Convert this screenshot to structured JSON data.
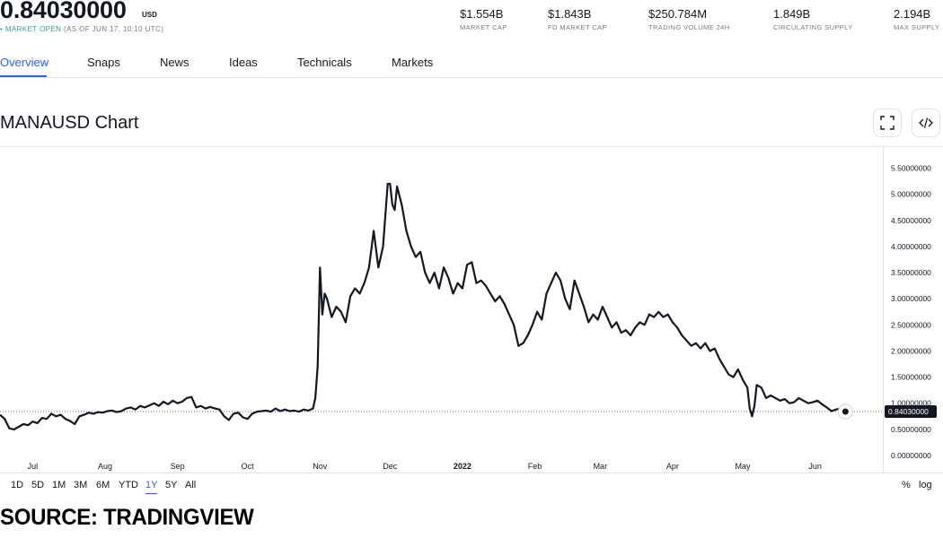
{
  "header": {
    "price": "0.84030000",
    "currency": "USD",
    "market_status": "MARKET OPEN",
    "as_of": "(AS OF JUN 17, 10:10 UTC)",
    "status_color": "#26a69a",
    "stats": [
      {
        "value": "$1.554B",
        "label": "MARKET CAP"
      },
      {
        "value": "$1.843B",
        "label": "FD MARKET CAP"
      },
      {
        "value": "$250.784M",
        "label": "TRADING VOLUME 24H"
      },
      {
        "value": "1.849B",
        "label": "CIRCULATING SUPPLY"
      },
      {
        "value": "2.194B",
        "label": "MAX SUPPLY"
      }
    ]
  },
  "tabs": [
    "Overview",
    "Snaps",
    "News",
    "Ideas",
    "Technicals",
    "Markets"
  ],
  "active_tab": "Overview",
  "accent_color": "#2962ff",
  "chart_title": "MANAUSD Chart",
  "icons": {
    "fullscreen": "fullscreen-icon",
    "embed": "embed-code-icon"
  },
  "range_buttons": [
    "1D",
    "5D",
    "1M",
    "3M",
    "6M",
    "YTD",
    "1Y",
    "5Y",
    "All"
  ],
  "active_range": "1Y",
  "scale_buttons": [
    "%",
    "log"
  ],
  "source": "SOURCE: TRADINGVIEW",
  "chart_data": {
    "type": "line",
    "symbol": "MANAUSD",
    "series_color": "#131722",
    "ylim": [
      0,
      5.75
    ],
    "y_ticks": [
      0,
      0.5,
      1.0,
      1.5,
      2.0,
      2.5,
      3.0,
      3.5,
      4.0,
      4.5,
      5.0,
      5.5
    ],
    "y_tick_labels": [
      "0.00000000",
      "0.50000000",
      "1.00000000",
      "1.50000000",
      "2.00000000",
      "2.50000000",
      "3.00000000",
      "3.50000000",
      "4.00000000",
      "4.50000000",
      "5.00000000",
      "5.50000000"
    ],
    "x_ticks": [
      {
        "label": "Jul",
        "day": 14
      },
      {
        "label": "Aug",
        "day": 45
      },
      {
        "label": "Sep",
        "day": 76
      },
      {
        "label": "Oct",
        "day": 106
      },
      {
        "label": "Nov",
        "day": 137
      },
      {
        "label": "Dec",
        "day": 167
      },
      {
        "label": "2022",
        "day": 198
      },
      {
        "label": "Feb",
        "day": 229
      },
      {
        "label": "Mar",
        "day": 257
      },
      {
        "label": "Apr",
        "day": 288
      },
      {
        "label": "May",
        "day": 318
      },
      {
        "label": "Jun",
        "day": 349
      }
    ],
    "x_range_days": [
      0,
      403
    ],
    "last_value": 0.8403,
    "last_value_label": "0.84030000",
    "points": [
      [
        0,
        0.78
      ],
      [
        2,
        0.7
      ],
      [
        4,
        0.52
      ],
      [
        6,
        0.5
      ],
      [
        8,
        0.55
      ],
      [
        10,
        0.6
      ],
      [
        12,
        0.58
      ],
      [
        14,
        0.65
      ],
      [
        16,
        0.62
      ],
      [
        18,
        0.72
      ],
      [
        20,
        0.7
      ],
      [
        22,
        0.8
      ],
      [
        24,
        0.75
      ],
      [
        26,
        0.78
      ],
      [
        28,
        0.7
      ],
      [
        30,
        0.66
      ],
      [
        32,
        0.6
      ],
      [
        34,
        0.75
      ],
      [
        36,
        0.78
      ],
      [
        38,
        0.82
      ],
      [
        40,
        0.8
      ],
      [
        42,
        0.83
      ],
      [
        44,
        0.82
      ],
      [
        46,
        0.85
      ],
      [
        48,
        0.86
      ],
      [
        50,
        0.83
      ],
      [
        52,
        0.85
      ],
      [
        54,
        0.9
      ],
      [
        56,
        0.92
      ],
      [
        58,
        0.88
      ],
      [
        60,
        0.95
      ],
      [
        62,
        0.92
      ],
      [
        64,
        0.96
      ],
      [
        66,
        1.0
      ],
      [
        68,
        0.95
      ],
      [
        70,
        1.03
      ],
      [
        72,
        0.98
      ],
      [
        74,
        1.05
      ],
      [
        76,
        1.0
      ],
      [
        78,
        1.03
      ],
      [
        80,
        1.1
      ],
      [
        82,
        1.12
      ],
      [
        84,
        0.92
      ],
      [
        86,
        0.95
      ],
      [
        88,
        0.9
      ],
      [
        90,
        0.93
      ],
      [
        92,
        0.9
      ],
      [
        94,
        0.88
      ],
      [
        96,
        0.75
      ],
      [
        98,
        0.68
      ],
      [
        100,
        0.8
      ],
      [
        102,
        0.82
      ],
      [
        104,
        0.73
      ],
      [
        106,
        0.7
      ],
      [
        108,
        0.8
      ],
      [
        110,
        0.84
      ],
      [
        112,
        0.85
      ],
      [
        114,
        0.86
      ],
      [
        116,
        0.84
      ],
      [
        118,
        0.9
      ],
      [
        120,
        0.85
      ],
      [
        122,
        0.88
      ],
      [
        124,
        0.85
      ],
      [
        126,
        0.86
      ],
      [
        128,
        0.84
      ],
      [
        130,
        0.88
      ],
      [
        132,
        0.86
      ],
      [
        134,
        0.9
      ],
      [
        135,
        1.1
      ],
      [
        136,
        1.7
      ],
      [
        137,
        3.6
      ],
      [
        138,
        2.7
      ],
      [
        139,
        3.1
      ],
      [
        140,
        3.0
      ],
      [
        142,
        2.65
      ],
      [
        144,
        2.85
      ],
      [
        146,
        2.75
      ],
      [
        148,
        2.55
      ],
      [
        150,
        3.05
      ],
      [
        152,
        3.2
      ],
      [
        154,
        3.1
      ],
      [
        156,
        3.3
      ],
      [
        158,
        3.6
      ],
      [
        160,
        4.3
      ],
      [
        162,
        3.6
      ],
      [
        164,
        4.0
      ],
      [
        166,
        5.2
      ],
      [
        167,
        5.2
      ],
      [
        168,
        4.8
      ],
      [
        169,
        4.7
      ],
      [
        170,
        5.15
      ],
      [
        172,
        4.8
      ],
      [
        174,
        4.3
      ],
      [
        176,
        4.0
      ],
      [
        178,
        3.8
      ],
      [
        180,
        3.9
      ],
      [
        182,
        3.5
      ],
      [
        184,
        3.3
      ],
      [
        186,
        3.5
      ],
      [
        188,
        3.2
      ],
      [
        190,
        3.6
      ],
      [
        192,
        3.4
      ],
      [
        194,
        3.1
      ],
      [
        196,
        3.3
      ],
      [
        198,
        3.2
      ],
      [
        200,
        3.65
      ],
      [
        202,
        3.7
      ],
      [
        204,
        3.3
      ],
      [
        206,
        3.35
      ],
      [
        208,
        3.25
      ],
      [
        210,
        3.1
      ],
      [
        212,
        2.95
      ],
      [
        214,
        3.05
      ],
      [
        216,
        2.9
      ],
      [
        218,
        2.7
      ],
      [
        220,
        2.5
      ],
      [
        222,
        2.1
      ],
      [
        224,
        2.15
      ],
      [
        226,
        2.3
      ],
      [
        228,
        2.5
      ],
      [
        230,
        2.75
      ],
      [
        232,
        2.6
      ],
      [
        234,
        3.1
      ],
      [
        236,
        3.3
      ],
      [
        238,
        3.5
      ],
      [
        240,
        3.35
      ],
      [
        242,
        3.0
      ],
      [
        244,
        2.8
      ],
      [
        246,
        3.35
      ],
      [
        248,
        3.1
      ],
      [
        250,
        2.85
      ],
      [
        252,
        2.55
      ],
      [
        254,
        2.7
      ],
      [
        256,
        2.6
      ],
      [
        258,
        2.85
      ],
      [
        260,
        2.65
      ],
      [
        262,
        2.45
      ],
      [
        264,
        2.55
      ],
      [
        266,
        2.35
      ],
      [
        268,
        2.4
      ],
      [
        270,
        2.3
      ],
      [
        272,
        2.45
      ],
      [
        274,
        2.55
      ],
      [
        276,
        2.5
      ],
      [
        278,
        2.7
      ],
      [
        280,
        2.65
      ],
      [
        282,
        2.75
      ],
      [
        284,
        2.65
      ],
      [
        286,
        2.7
      ],
      [
        288,
        2.55
      ],
      [
        290,
        2.45
      ],
      [
        292,
        2.3
      ],
      [
        294,
        2.2
      ],
      [
        296,
        2.1
      ],
      [
        298,
        2.15
      ],
      [
        300,
        2.05
      ],
      [
        302,
        2.15
      ],
      [
        304,
        2.0
      ],
      [
        306,
        2.05
      ],
      [
        308,
        1.85
      ],
      [
        310,
        1.7
      ],
      [
        312,
        1.55
      ],
      [
        314,
        1.5
      ],
      [
        316,
        1.65
      ],
      [
        318,
        1.45
      ],
      [
        320,
        1.3
      ],
      [
        321,
        0.9
      ],
      [
        322,
        0.75
      ],
      [
        323,
        0.95
      ],
      [
        324,
        1.35
      ],
      [
        326,
        1.3
      ],
      [
        328,
        1.1
      ],
      [
        330,
        1.15
      ],
      [
        332,
        1.1
      ],
      [
        334,
        1.05
      ],
      [
        336,
        1.08
      ],
      [
        338,
        1.0
      ],
      [
        340,
        1.02
      ],
      [
        342,
        1.1
      ],
      [
        344,
        1.05
      ],
      [
        346,
        1.0
      ],
      [
        348,
        1.02
      ],
      [
        350,
        1.05
      ],
      [
        352,
        0.98
      ],
      [
        354,
        0.92
      ],
      [
        356,
        0.85
      ],
      [
        358,
        0.88
      ],
      [
        360,
        0.9
      ],
      [
        362,
        0.84
      ]
    ]
  }
}
